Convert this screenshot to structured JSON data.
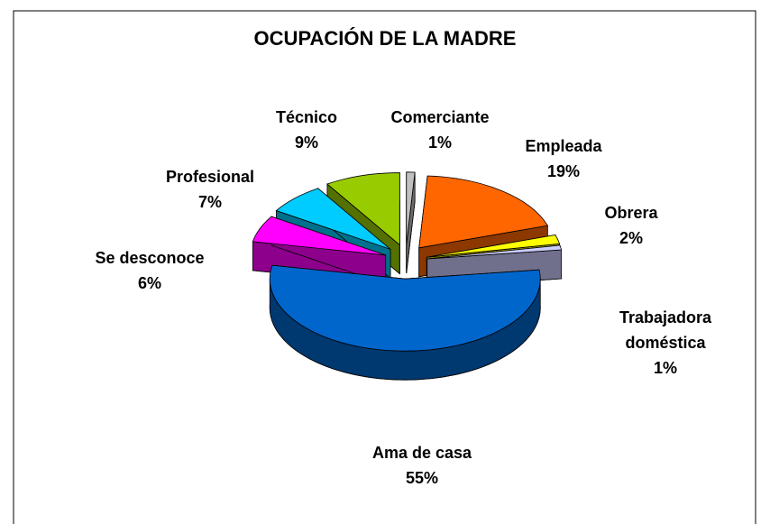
{
  "chart_data": {
    "type": "pie",
    "title": "OCUPACIÓN DE LA MADRE",
    "categories": [
      "Comerciante",
      "Empleada",
      "Obrera",
      "Trabajadora doméstica",
      "Ama de casa",
      "Se desconoce",
      "Profesional",
      "Técnico"
    ],
    "values": [
      1,
      19,
      2,
      1,
      55,
      6,
      7,
      9
    ],
    "value_labels": [
      "1%",
      "19%",
      "2%",
      "1%",
      "55%",
      "6%",
      "7%",
      "9%"
    ],
    "colors": [
      "#c0c0c0",
      "#ff6600",
      "#ffff00",
      "#ccccff",
      "#0066cc",
      "#ff00ff",
      "#00ccff",
      "#99cc00"
    ],
    "exploded": true,
    "three_d": true
  }
}
